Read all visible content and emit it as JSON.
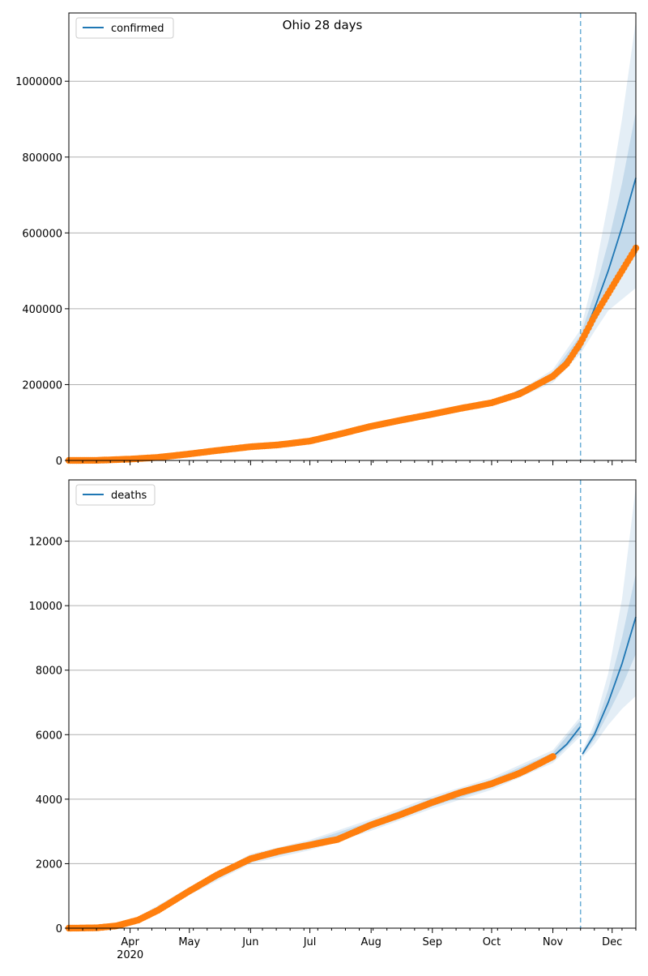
{
  "page": {
    "title": "Ohio 28 days"
  },
  "colors": {
    "model_line": "#1f77b4",
    "band": "#1f77b4",
    "observed": "#ff7f0e",
    "grid": "#b0b0b0",
    "axis": "#000000",
    "forecast_line": "#6baed6"
  },
  "chart_data": [
    {
      "type": "line",
      "title": "Ohio 28 days",
      "legend": {
        "label": "confirmed",
        "placement": "top-left"
      },
      "xlabel": "",
      "ylabel": "",
      "x_range": [
        "2020-03-01",
        "2020-12-13"
      ],
      "ylim": [
        0,
        1180000
      ],
      "y_ticks": [
        0,
        200000,
        400000,
        600000,
        800000,
        1000000
      ],
      "grid": "horizontal",
      "forecast_start": "2020-11-15",
      "observed": {
        "x": [
          "2020-03-01",
          "2020-03-15",
          "2020-04-01",
          "2020-04-15",
          "2020-05-01",
          "2020-05-15",
          "2020-06-01",
          "2020-06-15",
          "2020-07-01",
          "2020-07-15",
          "2020-08-01",
          "2020-08-15",
          "2020-09-01",
          "2020-09-15",
          "2020-10-01",
          "2020-10-15",
          "2020-11-01",
          "2020-11-08",
          "2020-11-15",
          "2020-11-22",
          "2020-11-29",
          "2020-12-06",
          "2020-12-13"
        ],
        "y": [
          0,
          200,
          3500,
          8000,
          17000,
          26000,
          36000,
          41000,
          51000,
          68000,
          90000,
          105000,
          122000,
          137000,
          152000,
          175000,
          222000,
          255000,
          310000,
          380000,
          440000,
          500000,
          560000
        ]
      },
      "fit": {
        "x": [
          "2020-03-01",
          "2020-04-01",
          "2020-05-01",
          "2020-06-01",
          "2020-07-01",
          "2020-08-01",
          "2020-09-01",
          "2020-10-01",
          "2020-11-01",
          "2020-11-15",
          "2020-11-22",
          "2020-11-29",
          "2020-12-06",
          "2020-12-13"
        ],
        "y": [
          0,
          3500,
          17000,
          36000,
          51000,
          90000,
          122000,
          152000,
          222000,
          310000,
          400000,
          500000,
          615000,
          745000
        ]
      },
      "band_inner": {
        "x": [
          "2020-10-15",
          "2020-11-01",
          "2020-11-15",
          "2020-11-22",
          "2020-11-29",
          "2020-12-06",
          "2020-12-13"
        ],
        "low": [
          170000,
          212000,
          290000,
          360000,
          430000,
          500000,
          570000
        ],
        "high": [
          180000,
          232000,
          330000,
          440000,
          575000,
          730000,
          920000
        ]
      },
      "band_outer": {
        "x": [
          "2020-10-15",
          "2020-11-01",
          "2020-11-15",
          "2020-11-22",
          "2020-11-29",
          "2020-12-06",
          "2020-12-13"
        ],
        "low": [
          166000,
          205000,
          282000,
          340000,
          395000,
          425000,
          455000
        ],
        "high": [
          184000,
          240000,
          345000,
          490000,
          680000,
          900000,
          1160000
        ]
      }
    },
    {
      "type": "line",
      "legend": {
        "label": "deaths",
        "placement": "top-left"
      },
      "xlabel": "",
      "ylabel": "",
      "x_range": [
        "2020-03-01",
        "2020-12-13"
      ],
      "x_ticks": [
        {
          "date": "2020-04-01",
          "label": "Apr",
          "sublabel": "2020"
        },
        {
          "date": "2020-05-01",
          "label": "May"
        },
        {
          "date": "2020-06-01",
          "label": "Jun"
        },
        {
          "date": "2020-07-01",
          "label": "Jul"
        },
        {
          "date": "2020-08-01",
          "label": "Aug"
        },
        {
          "date": "2020-09-01",
          "label": "Sep"
        },
        {
          "date": "2020-10-01",
          "label": "Oct"
        },
        {
          "date": "2020-11-01",
          "label": "Nov"
        },
        {
          "date": "2020-12-01",
          "label": "Dec"
        }
      ],
      "ylim": [
        0,
        13900
      ],
      "y_ticks": [
        0,
        2000,
        4000,
        6000,
        8000,
        10000,
        12000
      ],
      "grid": "horizontal",
      "forecast_start": "2020-11-15",
      "observed": {
        "x": [
          "2020-03-01",
          "2020-03-15",
          "2020-03-25",
          "2020-04-05",
          "2020-04-15",
          "2020-05-01",
          "2020-05-15",
          "2020-06-01",
          "2020-06-15",
          "2020-07-01",
          "2020-07-15",
          "2020-08-01",
          "2020-08-15",
          "2020-09-01",
          "2020-09-15",
          "2020-10-01",
          "2020-10-15",
          "2020-10-25",
          "2020-11-01"
        ],
        "y": [
          0,
          10,
          70,
          250,
          550,
          1150,
          1650,
          2150,
          2380,
          2580,
          2750,
          3200,
          3500,
          3900,
          4200,
          4480,
          4800,
          5100,
          5320
        ]
      },
      "fit": {
        "x": [
          "2020-03-01",
          "2020-03-15",
          "2020-04-01",
          "2020-04-15",
          "2020-05-01",
          "2020-05-15",
          "2020-06-01",
          "2020-06-15",
          "2020-07-01",
          "2020-07-15",
          "2020-08-01",
          "2020-08-15",
          "2020-09-01",
          "2020-09-15",
          "2020-10-01",
          "2020-10-15",
          "2020-11-01",
          "2020-11-08",
          "2020-11-15"
        ],
        "y": [
          0,
          10,
          150,
          550,
          1150,
          1650,
          2150,
          2380,
          2580,
          2750,
          3200,
          3500,
          3900,
          4200,
          4480,
          4800,
          5320,
          5700,
          6250
        ]
      },
      "forecast": {
        "x": [
          "2020-11-16",
          "2020-11-22",
          "2020-11-29",
          "2020-12-06",
          "2020-12-13"
        ],
        "y": [
          5400,
          6000,
          7000,
          8200,
          9650
        ]
      },
      "band_inner": {
        "x": [
          "2020-03-01",
          "2020-04-01",
          "2020-05-01",
          "2020-06-01",
          "2020-07-01",
          "2020-08-01",
          "2020-09-01",
          "2020-10-01",
          "2020-11-01",
          "2020-11-15"
        ],
        "low": [
          0,
          120,
          1080,
          2060,
          2480,
          3090,
          3780,
          4360,
          5200,
          6050
        ],
        "high": [
          0,
          180,
          1220,
          2240,
          2680,
          3310,
          4020,
          4600,
          5440,
          6450
        ]
      },
      "band_outer": {
        "x": [
          "2020-03-01",
          "2020-04-01",
          "2020-05-01",
          "2020-06-01",
          "2020-07-01",
          "2020-08-01",
          "2020-09-01",
          "2020-10-01",
          "2020-11-01",
          "2020-11-15"
        ],
        "low": [
          0,
          90,
          1030,
          2000,
          2420,
          3020,
          3710,
          4290,
          5120,
          5950
        ],
        "high": [
          0,
          210,
          1270,
          2300,
          2740,
          3380,
          4090,
          4670,
          5520,
          6560
        ]
      },
      "forecast_band_inner": {
        "x": [
          "2020-11-16",
          "2020-11-22",
          "2020-11-29",
          "2020-12-06",
          "2020-12-13"
        ],
        "low": [
          5350,
          5850,
          6650,
          7500,
          8500
        ],
        "high": [
          5450,
          6150,
          7400,
          9000,
          11000
        ]
      },
      "forecast_band_outer": {
        "x": [
          "2020-11-16",
          "2020-11-22",
          "2020-11-29",
          "2020-12-06",
          "2020-12-13"
        ],
        "low": [
          5300,
          5700,
          6300,
          6800,
          7200
        ],
        "high": [
          5500,
          6350,
          7900,
          10200,
          13700
        ]
      }
    }
  ]
}
